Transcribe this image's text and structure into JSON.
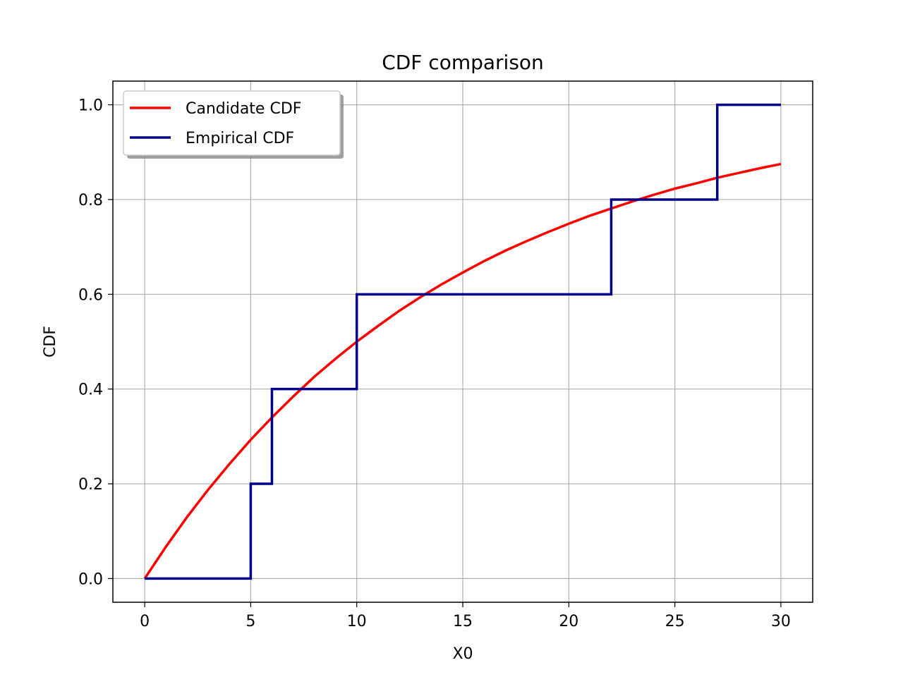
{
  "chart_data": {
    "type": "line",
    "title": "CDF comparison",
    "xlabel": "X0",
    "ylabel": "CDF",
    "xlim": [
      -1.5,
      31.5
    ],
    "ylim": [
      -0.05,
      1.05
    ],
    "xticks": [
      0,
      5,
      10,
      15,
      20,
      25,
      30
    ],
    "yticks": [
      0.0,
      0.2,
      0.4,
      0.6,
      0.8,
      1.0
    ],
    "xtick_labels": [
      "0",
      "5",
      "10",
      "15",
      "20",
      "25",
      "30"
    ],
    "ytick_labels": [
      "0.0",
      "0.2",
      "0.4",
      "0.6",
      "0.8",
      "1.0"
    ],
    "grid": true,
    "legend": {
      "position": "top-left",
      "shadow": true
    },
    "series": [
      {
        "name": "Candidate CDF",
        "kind": "line",
        "color": "#ff0000",
        "x": [
          0,
          1,
          2,
          3,
          4,
          5,
          6,
          7,
          8,
          9,
          10,
          11,
          12,
          13,
          14,
          15,
          16,
          17,
          18,
          19,
          20,
          21,
          22,
          23,
          24,
          25,
          26,
          27,
          28,
          29,
          30
        ],
        "y": [
          0.0,
          0.067,
          0.13,
          0.188,
          0.242,
          0.293,
          0.34,
          0.384,
          0.426,
          0.464,
          0.5,
          0.533,
          0.565,
          0.594,
          0.621,
          0.646,
          0.67,
          0.692,
          0.712,
          0.731,
          0.749,
          0.766,
          0.781,
          0.796,
          0.81,
          0.823,
          0.834,
          0.846,
          0.856,
          0.866,
          0.875
        ]
      },
      {
        "name": "Empirical CDF",
        "kind": "step",
        "color": "#00008b",
        "x": [
          0,
          5,
          6,
          10,
          22,
          27,
          30
        ],
        "y": [
          0.0,
          0.2,
          0.4,
          0.6,
          0.8,
          1.0,
          1.0
        ]
      }
    ]
  }
}
